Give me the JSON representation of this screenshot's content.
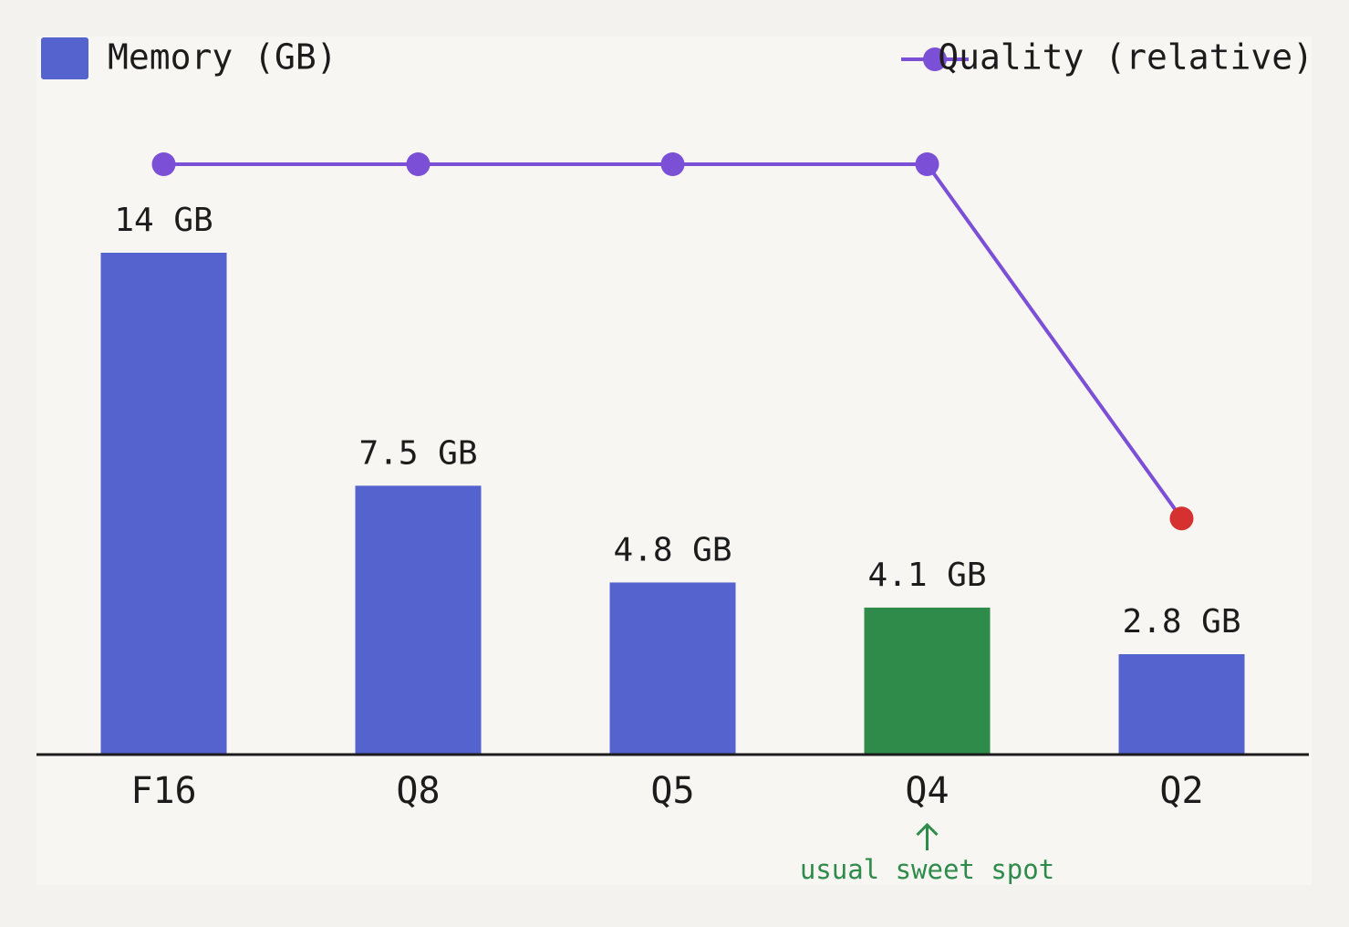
{
  "chart_data": {
    "type": "bar",
    "categories": [
      "F16",
      "Q8",
      "Q5",
      "Q4",
      "Q2"
    ],
    "series": [
      {
        "name": "Memory (GB)",
        "type": "bar",
        "color": "#5563cf",
        "bar_colors": [
          "#5563cf",
          "#5563cf",
          "#5563cf",
          "#2e8b4a",
          "#5563cf"
        ],
        "values": [
          14,
          7.5,
          4.8,
          4.1,
          2.8
        ],
        "value_labels": [
          "14 GB",
          "7.5 GB",
          "4.8 GB",
          "4.1 GB",
          "2.8 GB"
        ]
      },
      {
        "name": "Quality (relative)",
        "type": "line",
        "axis": "y2",
        "color": "#7b4fd6",
        "marker_colors": [
          "#7b4fd6",
          "#7b4fd6",
          "#7b4fd6",
          "#7b4fd6",
          "#d63030"
        ],
        "values": [
          1,
          1,
          1,
          1,
          0.4
        ]
      }
    ],
    "ylim": [
      0,
      14
    ],
    "y2lim": [
      0,
      1
    ],
    "annotation": {
      "text": "usual sweet spot",
      "color": "#2e8b4a"
    },
    "legend": "top"
  }
}
